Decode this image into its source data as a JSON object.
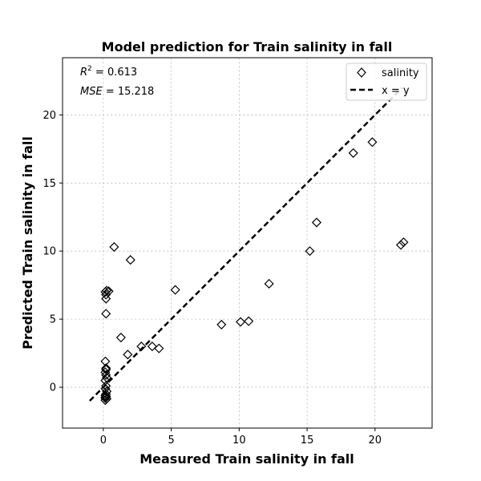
{
  "chart_data": {
    "type": "scatter",
    "title": "Model prediction for Train salinity in fall",
    "xlabel": "Measured Train salinity in fall",
    "ylabel": "Predicted Train salinity in fall",
    "xlim": [
      -3.0,
      24.2
    ],
    "ylim": [
      -3.0,
      24.2
    ],
    "xticks": [
      0,
      5,
      10,
      15,
      20
    ],
    "yticks": [
      0,
      5,
      10,
      15,
      20
    ],
    "grid": true,
    "legend_position": "top-right",
    "annotations": {
      "r2_symbol": "R",
      "r2_sup": "2",
      "r2_value": " = 0.613",
      "mse_symbol": "MSE",
      "mse_value": " = 15.218"
    },
    "series": [
      {
        "name": "salinity",
        "marker": "diamond",
        "color": "#000000",
        "x": [
          0.15,
          0.15,
          0.2,
          0.15,
          0.2,
          0.25,
          0.15,
          0.2,
          0.15,
          0.25,
          0.2,
          0.15,
          0.2,
          0.2,
          0.15,
          0.2,
          0.2,
          0.2,
          0.15,
          0.25,
          0.4,
          0.25,
          0.15,
          0.2,
          0.8,
          2.0,
          1.3,
          1.8,
          2.8,
          3.6,
          4.1,
          5.3,
          8.7,
          10.1,
          10.7,
          12.2,
          15.2,
          15.7,
          18.4,
          19.8,
          21.9,
          22.1
        ],
        "y": [
          -0.95,
          -0.8,
          -0.7,
          -0.6,
          -0.5,
          -0.3,
          -0.1,
          0.1,
          0.5,
          0.7,
          0.9,
          1.1,
          1.3,
          1.4,
          1.9,
          5.4,
          6.5,
          6.8,
          7.0,
          7.1,
          7.05,
          -0.85,
          -0.75,
          -0.65,
          10.3,
          9.35,
          3.65,
          2.4,
          3.0,
          3.0,
          2.85,
          7.15,
          4.6,
          4.8,
          4.85,
          7.6,
          10.0,
          12.1,
          17.2,
          18.0,
          10.45,
          10.65
        ]
      },
      {
        "name": "x = y",
        "style": "dashed-line",
        "color": "#000000",
        "x": [
          -1.0,
          22.0
        ],
        "y": [
          -1.0,
          22.0
        ]
      }
    ]
  }
}
